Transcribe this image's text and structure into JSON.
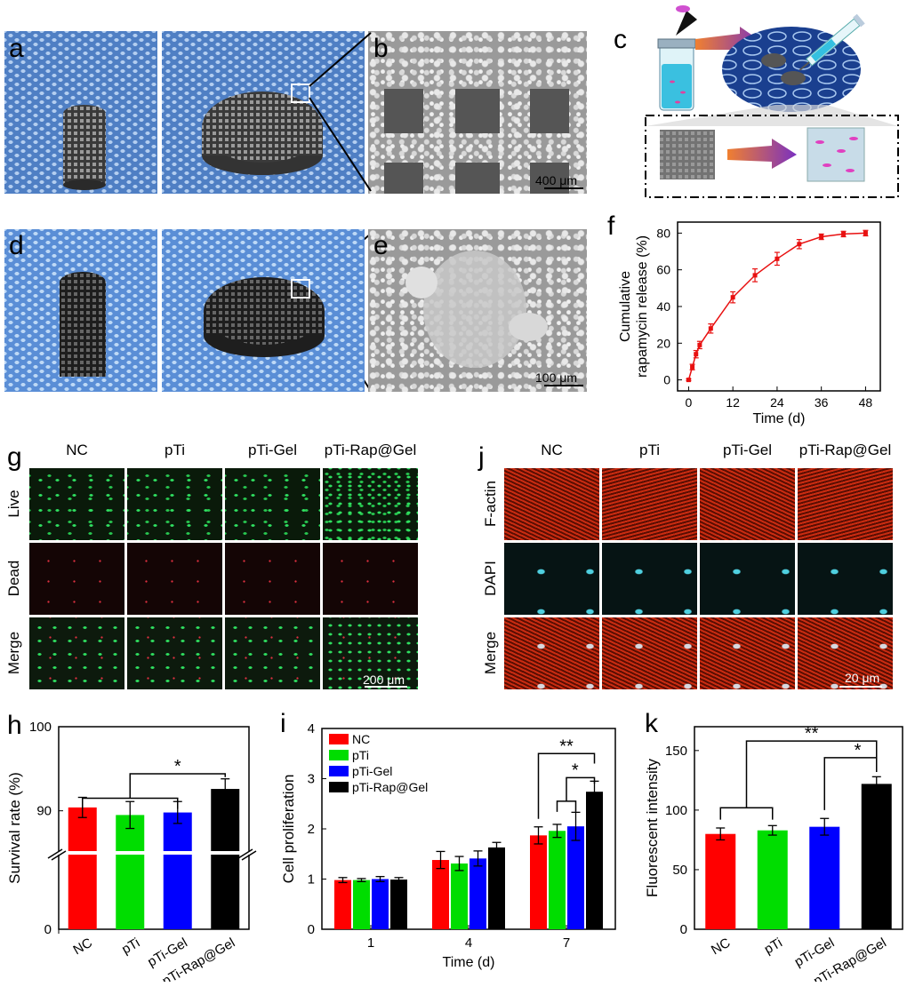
{
  "panel_labels": {
    "a": "a",
    "b": "b",
    "c": "c",
    "d": "d",
    "e": "e",
    "f": "f",
    "g": "g",
    "h": "h",
    "i": "i",
    "j": "j",
    "k": "k"
  },
  "scale_bars": {
    "b": "400 μm",
    "e": "100 μm",
    "g": "200 μm",
    "j": "20 μm"
  },
  "group_names": [
    "NC",
    "pTi",
    "pTi-Gel",
    "pTi-Rap@Gel"
  ],
  "g_rows": [
    "Live",
    "Dead",
    "Merge"
  ],
  "j_rows": [
    "F-actin",
    "DAPI",
    "Merge"
  ],
  "colors": {
    "NC": "#ff0000",
    "pTi": "#00dd00",
    "pTi-Gel": "#0000ff",
    "pTi-Rap@Gel": "#000000",
    "release": "#e81010"
  },
  "chart_data": [
    {
      "id": "f",
      "type": "line",
      "xlabel": "Time (d)",
      "ylabel": "Cumulative rapamycin release (%)",
      "ylabel_lines": [
        "Cumulative",
        "rapamycin release (%)"
      ],
      "xlim": [
        -3,
        52
      ],
      "ylim": [
        -6,
        86
      ],
      "xticks": [
        0,
        12,
        24,
        36,
        48
      ],
      "yticks": [
        0,
        20,
        40,
        60,
        80
      ],
      "x": [
        0,
        1,
        2,
        3,
        6,
        12,
        18,
        24,
        30,
        36,
        42,
        48
      ],
      "y": [
        0,
        7,
        14,
        19,
        28,
        45,
        57,
        66,
        74,
        78,
        79.5,
        80
      ],
      "err": [
        0.5,
        1.5,
        2,
        2,
        2.5,
        3,
        3.5,
        3.5,
        2.5,
        1.5,
        1.5,
        1.5
      ]
    },
    {
      "id": "h",
      "type": "bar",
      "ylabel": "Survival rate (%)",
      "categories": [
        "NC",
        "pTi",
        "pTi-Gel",
        "pTi-Rap@Gel"
      ],
      "values": [
        90.4,
        89.5,
        89.8,
        92.6
      ],
      "err": [
        1.2,
        1.6,
        1.3,
        1.2
      ],
      "yticks": [
        0,
        90,
        100
      ],
      "axis_break": true,
      "significance": [
        {
          "label": "*",
          "groups": [
            "NC",
            "pTi",
            "pTi-Gel"
          ],
          "vs": "pTi-Rap@Gel"
        }
      ]
    },
    {
      "id": "i",
      "type": "bar",
      "xlabel": "Time (d)",
      "ylabel": "Cell  proliferation",
      "categories": [
        "1",
        "4",
        "7"
      ],
      "series": [
        {
          "name": "NC",
          "values": [
            0.98,
            1.38,
            1.87
          ],
          "err": [
            0.05,
            0.17,
            0.17
          ]
        },
        {
          "name": "pTi",
          "values": [
            0.98,
            1.31,
            1.96
          ],
          "err": [
            0.03,
            0.14,
            0.13
          ]
        },
        {
          "name": "pTi-Gel",
          "values": [
            1.0,
            1.41,
            2.05
          ],
          "err": [
            0.05,
            0.15,
            0.28
          ]
        },
        {
          "name": "pTi-Rap@Gel",
          "values": [
            0.99,
            1.63,
            2.74
          ],
          "err": [
            0.04,
            0.1,
            0.21
          ]
        }
      ],
      "ylim": [
        0,
        4
      ],
      "yticks": [
        0,
        1,
        2,
        3,
        4
      ],
      "significance": [
        {
          "label": "**"
        },
        {
          "label": "*"
        }
      ]
    },
    {
      "id": "k",
      "type": "bar",
      "ylabel": "Fluorescent intensity",
      "categories": [
        "NC",
        "pTi",
        "pTi-Gel",
        "pTi-Rap@Gel"
      ],
      "values": [
        80,
        83,
        86,
        122
      ],
      "err": [
        5,
        4,
        7,
        6
      ],
      "ylim": [
        0,
        170
      ],
      "yticks": [
        0,
        50,
        100,
        150
      ],
      "significance": [
        {
          "label": "**"
        },
        {
          "label": "*"
        }
      ]
    }
  ]
}
